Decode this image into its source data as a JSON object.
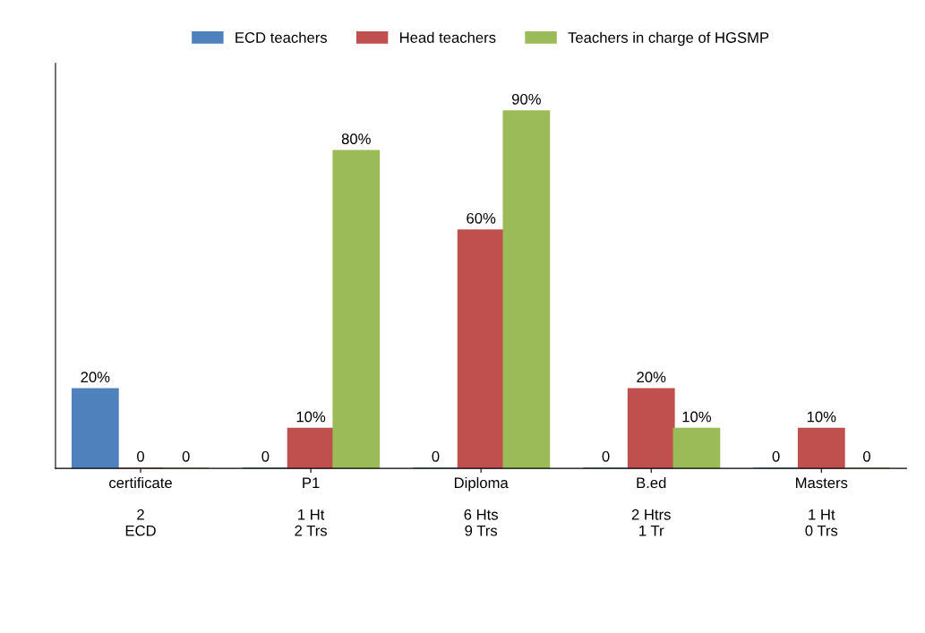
{
  "chart_data": {
    "type": "bar",
    "categories": [
      "certificate",
      "P1",
      "Diploma",
      "B.ed",
      "Masters"
    ],
    "series": [
      {
        "name": "ECD teachers",
        "color": "#4f81bd",
        "values": [
          20,
          0,
          0,
          0,
          0
        ],
        "value_labels": [
          "20%",
          "0",
          "0",
          "0",
          "0"
        ]
      },
      {
        "name": "Head teachers",
        "color": "#c0504d",
        "values": [
          0,
          10,
          60,
          20,
          10
        ],
        "value_labels": [
          "0",
          "10%",
          "60%",
          "20%",
          "10%"
        ]
      },
      {
        "name": "Teachers in charge of HGSMP",
        "color": "#9bbb59",
        "values": [
          0,
          80,
          90,
          10,
          0
        ],
        "value_labels": [
          "0",
          "80%",
          "90%",
          "10%",
          "0"
        ]
      }
    ],
    "annotations": [
      "2\nECD",
      "1 Ht\n2 Trs",
      "6 Hts\n9 Trs",
      "2 Htrs\n1 Tr",
      "1 Ht\n0 Trs"
    ],
    "tick_labels": "x",
    "legend": "top",
    "grid": false
  }
}
